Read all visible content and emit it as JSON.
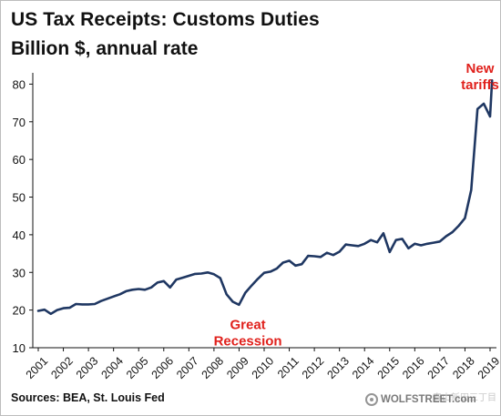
{
  "header": {
    "title": "US Tax Receipts: Customs Duties",
    "subtitle": "Billion $, annual rate"
  },
  "footer": {
    "source": "Sources: BEA, St. Louis Fed",
    "watermark_text": "WOLFSTREET.com",
    "watermark_overlay": "春山新田三丁目",
    "watermark_icon": "watermark-logo-icon"
  },
  "colors": {
    "line": "#1f3762",
    "annotation": "#e0211c",
    "text": "#111111",
    "axis": "#111111"
  },
  "chart_data": {
    "type": "line",
    "title": "US Tax Receipts: Customs Duties",
    "subtitle": "Billion $, annual rate",
    "xlabel": "",
    "ylabel": "",
    "xlim": [
      2001,
      2019
    ],
    "ylim": [
      10,
      83
    ],
    "yticks": [
      10,
      20,
      30,
      40,
      50,
      60,
      70,
      80
    ],
    "xticks": [
      "2001",
      "2002",
      "2003",
      "2004",
      "2005",
      "2006",
      "2007",
      "2008",
      "2009",
      "2010",
      "2011",
      "2012",
      "2013",
      "2014",
      "2015",
      "2016",
      "2017",
      "2018",
      "2019"
    ],
    "grid": false,
    "annotations": [
      {
        "lines": [
          "New",
          "tariffs"
        ],
        "x": 2018.6,
        "y": 83,
        "color": "#e0211c"
      },
      {
        "lines": [
          "Great",
          "Recession"
        ],
        "x": 2009.35,
        "y": 15,
        "color": "#e0211c"
      }
    ],
    "series": [
      {
        "color": "#1f3762",
        "x": [
          2001.0,
          2001.25,
          2001.5,
          2001.75,
          2002.0,
          2002.25,
          2002.5,
          2002.75,
          2003.0,
          2003.25,
          2003.5,
          2003.75,
          2004.0,
          2004.25,
          2004.5,
          2004.75,
          2005.0,
          2005.25,
          2005.5,
          2005.75,
          2006.0,
          2006.25,
          2006.5,
          2006.75,
          2007.0,
          2007.25,
          2007.5,
          2007.75,
          2008.0,
          2008.25,
          2008.5,
          2008.75,
          2009.0,
          2009.25,
          2009.5,
          2009.75,
          2010.0,
          2010.25,
          2010.5,
          2010.75,
          2011.0,
          2011.25,
          2011.5,
          2011.75,
          2012.0,
          2012.25,
          2012.5,
          2012.75,
          2013.0,
          2013.25,
          2013.5,
          2013.75,
          2014.0,
          2014.25,
          2014.5,
          2014.75,
          2015.0,
          2015.25,
          2015.5,
          2015.75,
          2016.0,
          2016.25,
          2016.5,
          2016.75,
          2017.0,
          2017.25,
          2017.5,
          2017.75,
          2018.0,
          2018.25,
          2018.5,
          2018.75,
          2019.0
        ],
        "values": [
          19.8,
          20.1,
          19.0,
          20.0,
          20.5,
          20.6,
          21.6,
          21.5,
          21.5,
          21.6,
          22.4,
          23.0,
          23.6,
          24.2,
          25.0,
          25.4,
          25.6,
          25.4,
          26.0,
          27.3,
          27.7,
          26.0,
          28.1,
          28.6,
          29.1,
          29.6,
          29.7,
          30.0,
          29.5,
          28.5,
          24.2,
          22.2,
          21.4,
          24.6,
          26.5,
          28.3,
          29.9,
          30.2,
          31.0,
          32.6,
          33.1,
          31.8,
          32.2,
          34.4,
          34.3,
          34.1,
          35.2,
          34.6,
          35.5,
          37.4,
          37.2,
          37.0,
          37.6,
          38.6,
          38.0,
          40.4,
          35.4,
          38.6,
          38.9,
          36.4,
          37.6,
          37.2,
          37.6,
          37.9,
          38.2,
          39.6,
          40.7,
          42.4,
          44.4,
          51.9,
          73.4,
          74.8,
          71.4
        ]
      }
    ],
    "last_point": {
      "x": 2019.08,
      "value": 81.0
    }
  }
}
